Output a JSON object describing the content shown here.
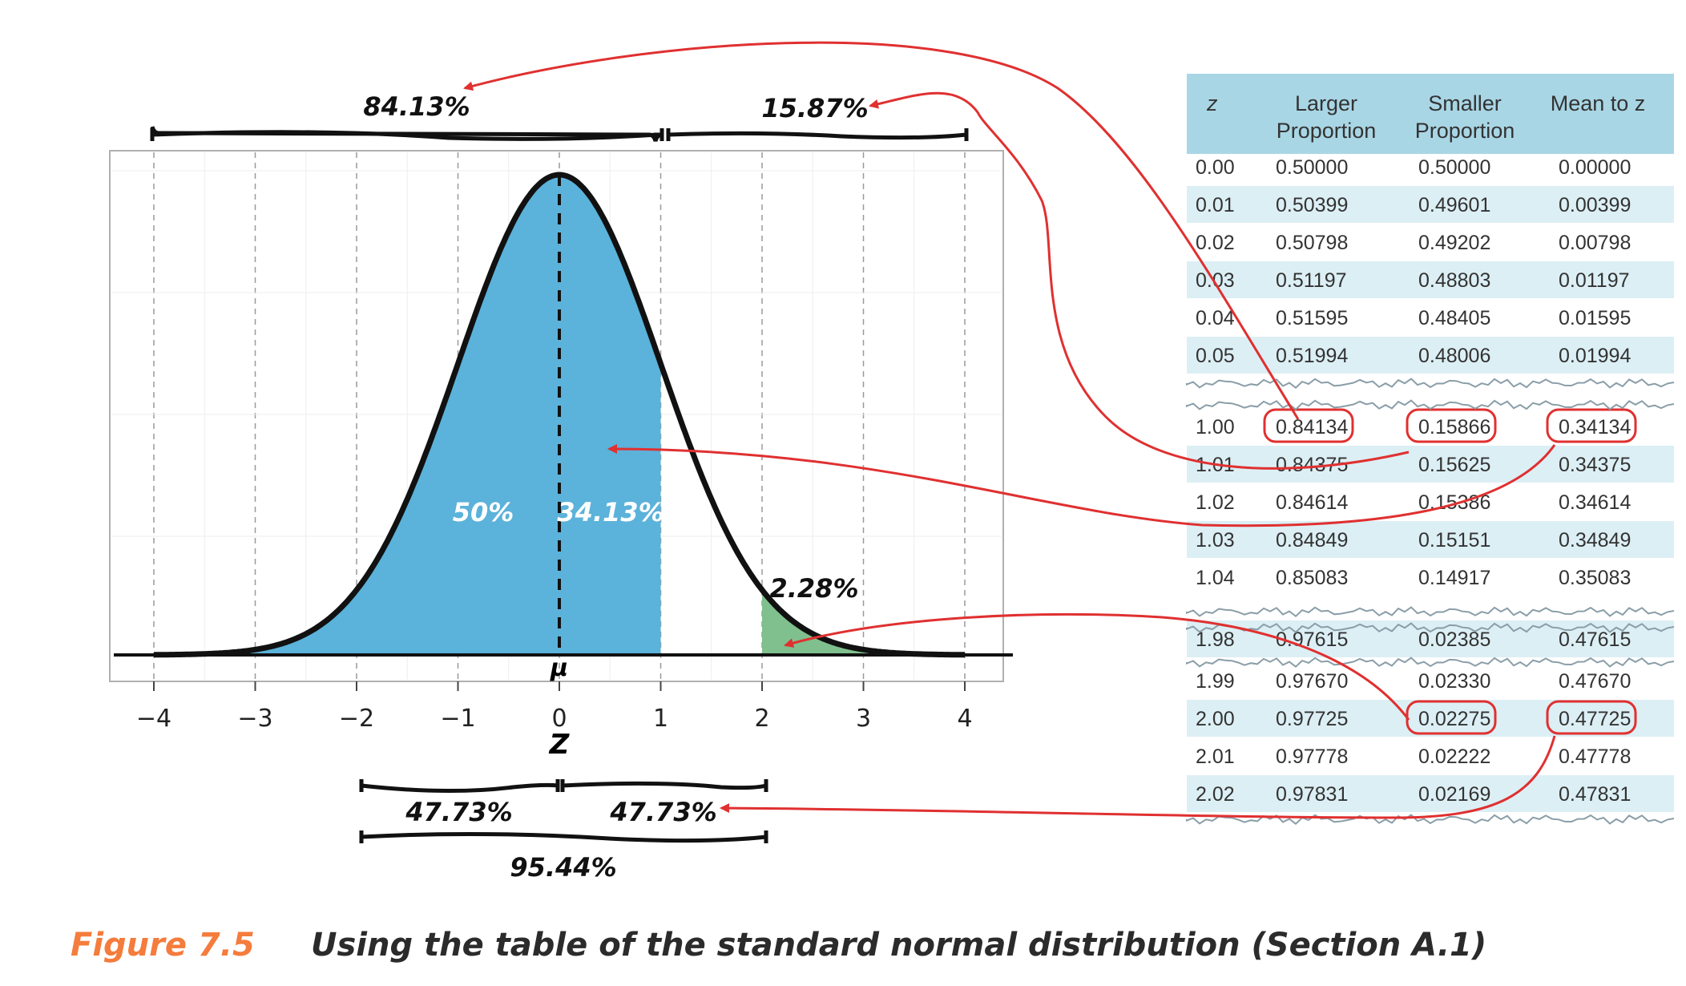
{
  "chart_data": {
    "type": "area",
    "distribution": "standard normal",
    "xlabel": "Z",
    "mean_label": "μ",
    "x_ticks": [
      -4,
      -3,
      -2,
      -1,
      0,
      1,
      2,
      3,
      4
    ],
    "xlim": [
      -4,
      4
    ],
    "grid": true,
    "shaded_regions": [
      {
        "from": -4,
        "to": 1,
        "color": "#5BB2DA",
        "labels": [
          "50%",
          "34.13%"
        ]
      },
      {
        "from": 2,
        "to": 4,
        "color": "#7FC08E",
        "labels": [
          "2.28%"
        ]
      }
    ],
    "brackets_top": [
      {
        "from": -4,
        "to": 1,
        "label": "84.13%"
      },
      {
        "from": 1,
        "to": 4,
        "label": "15.87%"
      }
    ],
    "brackets_bottom": [
      {
        "from": -2,
        "to": 0,
        "label": "47.73%"
      },
      {
        "from": 0,
        "to": 2,
        "label": "47.73%"
      },
      {
        "from": -2,
        "to": 2,
        "label": "95.44%"
      }
    ]
  },
  "table": {
    "headers": [
      [
        "z"
      ],
      [
        "Larger",
        "Proportion"
      ],
      [
        "Smaller",
        "Proportion"
      ],
      [
        "Mean to z"
      ]
    ],
    "rows": [
      [
        "0.00",
        "0.50000",
        "0.50000",
        "0.00000"
      ],
      [
        "0.01",
        "0.50399",
        "0.49601",
        "0.00399"
      ],
      [
        "0.02",
        "0.50798",
        "0.49202",
        "0.00798"
      ],
      [
        "0.03",
        "0.51197",
        "0.48803",
        "0.01197"
      ],
      [
        "0.04",
        "0.51595",
        "0.48405",
        "0.01595"
      ],
      [
        "0.05",
        "0.51994",
        "0.48006",
        "0.01994"
      ],
      [
        "1.00",
        "0.84134",
        "0.15866",
        "0.34134"
      ],
      [
        "1.01",
        "0.84375",
        "0.15625",
        "0.34375"
      ],
      [
        "1.02",
        "0.84614",
        "0.15386",
        "0.34614"
      ],
      [
        "1.03",
        "0.84849",
        "0.15151",
        "0.34849"
      ],
      [
        "1.04",
        "0.85083",
        "0.14917",
        "0.35083"
      ],
      [
        "1.98",
        "0.97615",
        "0.02385",
        "0.47615"
      ],
      [
        "1.99",
        "0.97670",
        "0.02330",
        "0.47670"
      ],
      [
        "2.00",
        "0.97725",
        "0.02275",
        "0.47725"
      ],
      [
        "2.01",
        "0.97778",
        "0.02222",
        "0.47778"
      ],
      [
        "2.02",
        "0.97831",
        "0.02169",
        "0.47831"
      ]
    ],
    "highlight_color": "#E03030",
    "header_color": "#A9D6E5",
    "stripe_color": "#DCEFF5"
  },
  "caption": {
    "number": "Figure 7.5",
    "text": "Using the table of the standard normal distribution (Section A.1)",
    "number_color": "#F47C3C"
  }
}
